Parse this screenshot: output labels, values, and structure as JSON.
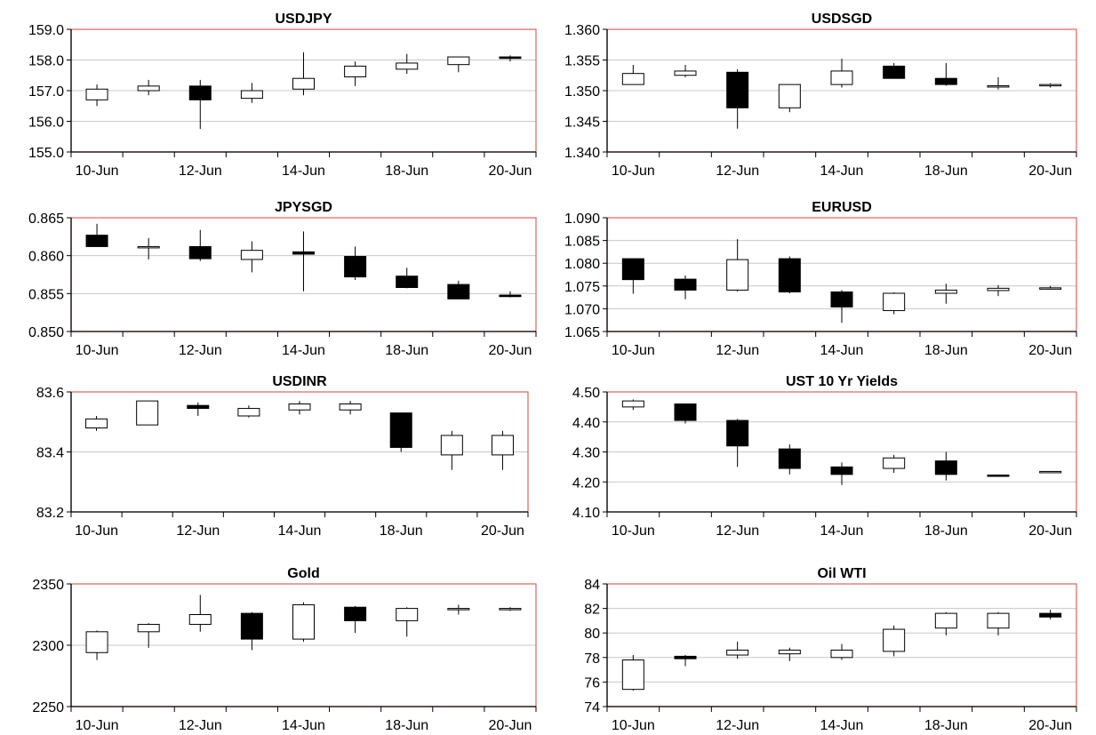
{
  "chart_data": [
    {
      "type": "candlestick",
      "title": "USDJPY",
      "ylim": [
        155.0,
        159.0
      ],
      "yticks": [
        "155.0",
        "156.0",
        "157.0",
        "158.0",
        "159.0"
      ],
      "xticks": [
        "10-Jun",
        "12-Jun",
        "14-Jun",
        "18-Jun",
        "20-Jun"
      ],
      "grid": true,
      "candles": [
        {
          "o": 156.7,
          "h": 157.2,
          "l": 156.5,
          "c": 157.05
        },
        {
          "o": 157.0,
          "h": 157.35,
          "l": 156.85,
          "c": 157.15
        },
        {
          "o": 157.15,
          "h": 157.35,
          "l": 155.75,
          "c": 156.7
        },
        {
          "o": 156.75,
          "h": 157.25,
          "l": 156.6,
          "c": 157.0
        },
        {
          "o": 157.05,
          "h": 158.25,
          "l": 156.85,
          "c": 157.4
        },
        {
          "o": 157.45,
          "h": 157.95,
          "l": 157.15,
          "c": 157.8
        },
        {
          "o": 157.7,
          "h": 158.2,
          "l": 157.55,
          "c": 157.9
        },
        {
          "o": 157.85,
          "h": 158.1,
          "l": 157.6,
          "c": 158.1
        },
        {
          "o": 158.1,
          "h": 158.15,
          "l": 157.95,
          "c": 158.05
        }
      ]
    },
    {
      "type": "candlestick",
      "title": "USDSGD",
      "ylim": [
        1.34,
        1.36
      ],
      "yticks": [
        "1.340",
        "1.345",
        "1.350",
        "1.355",
        "1.360"
      ],
      "xticks": [
        "10-Jun",
        "12-Jun",
        "14-Jun",
        "18-Jun",
        "20-Jun"
      ],
      "grid": true,
      "candles": [
        {
          "o": 1.351,
          "h": 1.3542,
          "l": 1.351,
          "c": 1.3528
        },
        {
          "o": 1.3525,
          "h": 1.3542,
          "l": 1.3522,
          "c": 1.3532
        },
        {
          "o": 1.353,
          "h": 1.3535,
          "l": 1.3438,
          "c": 1.3472
        },
        {
          "o": 1.3472,
          "h": 1.351,
          "l": 1.3465,
          "c": 1.351
        },
        {
          "o": 1.351,
          "h": 1.3552,
          "l": 1.3505,
          "c": 1.3532
        },
        {
          "o": 1.354,
          "h": 1.3545,
          "l": 1.352,
          "c": 1.352
        },
        {
          "o": 1.352,
          "h": 1.3545,
          "l": 1.3508,
          "c": 1.351
        },
        {
          "o": 1.3508,
          "h": 1.3522,
          "l": 1.3502,
          "c": 1.3508
        },
        {
          "o": 1.3508,
          "h": 1.3512,
          "l": 1.3505,
          "c": 1.351
        }
      ]
    },
    {
      "type": "candlestick",
      "title": "JPYSGD",
      "ylim": [
        0.85,
        0.865
      ],
      "yticks": [
        "0.850",
        "0.855",
        "0.860",
        "0.865"
      ],
      "xticks": [
        "10-Jun",
        "12-Jun",
        "14-Jun",
        "18-Jun",
        "20-Jun"
      ],
      "grid": true,
      "candles": [
        {
          "o": 0.8627,
          "h": 0.8642,
          "l": 0.8612,
          "c": 0.8612
        },
        {
          "o": 0.8612,
          "h": 0.8623,
          "l": 0.8595,
          "c": 0.8612
        },
        {
          "o": 0.8612,
          "h": 0.8634,
          "l": 0.8593,
          "c": 0.8596
        },
        {
          "o": 0.8595,
          "h": 0.8619,
          "l": 0.8578,
          "c": 0.8607
        },
        {
          "o": 0.8605,
          "h": 0.8632,
          "l": 0.8553,
          "c": 0.8602
        },
        {
          "o": 0.8599,
          "h": 0.8612,
          "l": 0.8568,
          "c": 0.8572
        },
        {
          "o": 0.8573,
          "h": 0.8584,
          "l": 0.8557,
          "c": 0.8558
        },
        {
          "o": 0.8562,
          "h": 0.8567,
          "l": 0.8543,
          "c": 0.8543
        },
        {
          "o": 0.8548,
          "h": 0.8553,
          "l": 0.8545,
          "c": 0.8546
        }
      ]
    },
    {
      "type": "candlestick",
      "title": "EURUSD",
      "ylim": [
        1.065,
        1.09
      ],
      "yticks": [
        "1.065",
        "1.070",
        "1.075",
        "1.080",
        "1.085",
        "1.090"
      ],
      "xticks": [
        "10-Jun",
        "12-Jun",
        "14-Jun",
        "18-Jun",
        "20-Jun"
      ],
      "grid": true,
      "candles": [
        {
          "o": 1.081,
          "h": 1.081,
          "l": 1.0733,
          "c": 1.0764
        },
        {
          "o": 1.0765,
          "h": 1.0773,
          "l": 1.0721,
          "c": 1.0741
        },
        {
          "o": 1.0741,
          "h": 1.0853,
          "l": 1.0738,
          "c": 1.0808
        },
        {
          "o": 1.081,
          "h": 1.0815,
          "l": 1.0734,
          "c": 1.0737
        },
        {
          "o": 1.0737,
          "h": 1.0741,
          "l": 1.0669,
          "c": 1.0704
        },
        {
          "o": 1.0696,
          "h": 1.0736,
          "l": 1.0688,
          "c": 1.0734
        },
        {
          "o": 1.0734,
          "h": 1.0755,
          "l": 1.0711,
          "c": 1.0741
        },
        {
          "o": 1.074,
          "h": 1.0752,
          "l": 1.0728,
          "c": 1.0745
        },
        {
          "o": 1.0745,
          "h": 1.075,
          "l": 1.0742,
          "c": 1.0746
        }
      ]
    },
    {
      "type": "candlestick",
      "title": "USDINR",
      "ylim": [
        83.2,
        83.6
      ],
      "yticks": [
        "83.2",
        "83.4",
        "83.6"
      ],
      "xticks": [
        "10-Jun",
        "12-Jun",
        "14-Jun",
        "18-Jun",
        "20-Jun"
      ],
      "grid": true,
      "candles": [
        {
          "o": 83.48,
          "h": 83.52,
          "l": 83.47,
          "c": 83.51
        },
        {
          "o": 83.49,
          "h": 83.57,
          "l": 83.49,
          "c": 83.57
        },
        {
          "o": 83.555,
          "h": 83.565,
          "l": 83.52,
          "c": 83.545
        },
        {
          "o": 83.52,
          "h": 83.555,
          "l": 83.515,
          "c": 83.545
        },
        {
          "o": 83.54,
          "h": 83.57,
          "l": 83.525,
          "c": 83.56
        },
        {
          "o": 83.54,
          "h": 83.57,
          "l": 83.525,
          "c": 83.56
        },
        {
          "o": 83.53,
          "h": 83.53,
          "l": 83.4,
          "c": 83.415
        },
        {
          "o": 83.39,
          "h": 83.47,
          "l": 83.34,
          "c": 83.455
        },
        {
          "o": 83.39,
          "h": 83.47,
          "l": 83.34,
          "c": 83.455
        }
      ]
    },
    {
      "type": "candlestick",
      "title": "UST 10 Yr Yields",
      "ylim": [
        4.1,
        4.5
      ],
      "yticks": [
        "4.10",
        "4.20",
        "4.30",
        "4.40",
        "4.50"
      ],
      "xticks": [
        "10-Jun",
        "12-Jun",
        "14-Jun",
        "18-Jun",
        "20-Jun"
      ],
      "grid": true,
      "candles": [
        {
          "o": 4.45,
          "h": 4.475,
          "l": 4.44,
          "c": 4.47
        },
        {
          "o": 4.46,
          "h": 4.46,
          "l": 4.395,
          "c": 4.405
        },
        {
          "o": 4.405,
          "h": 4.41,
          "l": 4.25,
          "c": 4.32
        },
        {
          "o": 4.31,
          "h": 4.325,
          "l": 4.225,
          "c": 4.245
        },
        {
          "o": 4.25,
          "h": 4.265,
          "l": 4.19,
          "c": 4.225
        },
        {
          "o": 4.245,
          "h": 4.29,
          "l": 4.23,
          "c": 4.28
        },
        {
          "o": 4.27,
          "h": 4.3,
          "l": 4.205,
          "c": 4.225
        },
        {
          "o": 4.223,
          "h": 4.225,
          "l": 4.221,
          "c": 4.222
        },
        {
          "o": 4.233,
          "h": 4.236,
          "l": 4.232,
          "c": 4.235
        }
      ]
    },
    {
      "type": "candlestick",
      "title": "Gold",
      "ylim": [
        2250,
        2350
      ],
      "yticks": [
        "2250",
        "2300",
        "2350"
      ],
      "xticks": [
        "10-Jun",
        "12-Jun",
        "14-Jun",
        "18-Jun",
        "20-Jun"
      ],
      "grid": true,
      "candles": [
        {
          "o": 2294,
          "h": 2312,
          "l": 2288,
          "c": 2311
        },
        {
          "o": 2311,
          "h": 2318,
          "l": 2298,
          "c": 2317
        },
        {
          "o": 2317,
          "h": 2341,
          "l": 2311,
          "c": 2325
        },
        {
          "o": 2326,
          "h": 2327,
          "l": 2296,
          "c": 2305
        },
        {
          "o": 2305,
          "h": 2335,
          "l": 2303,
          "c": 2333
        },
        {
          "o": 2331,
          "h": 2332,
          "l": 2310,
          "c": 2320
        },
        {
          "o": 2320,
          "h": 2331,
          "l": 2307,
          "c": 2330
        },
        {
          "o": 2329,
          "h": 2333,
          "l": 2325,
          "c": 2330
        },
        {
          "o": 2329,
          "h": 2331,
          "l": 2328,
          "c": 2330
        }
      ]
    },
    {
      "type": "candlestick",
      "title": "Oil WTI",
      "ylim": [
        74,
        84
      ],
      "yticks": [
        "74",
        "76",
        "78",
        "80",
        "82",
        "84"
      ],
      "xticks": [
        "10-Jun",
        "12-Jun",
        "14-Jun",
        "18-Jun",
        "20-Jun"
      ],
      "grid": true,
      "candles": [
        {
          "o": 75.4,
          "h": 78.2,
          "l": 75.3,
          "c": 77.8
        },
        {
          "o": 78.1,
          "h": 78.2,
          "l": 77.3,
          "c": 77.9
        },
        {
          "o": 78.2,
          "h": 79.3,
          "l": 77.9,
          "c": 78.6
        },
        {
          "o": 78.3,
          "h": 78.8,
          "l": 77.7,
          "c": 78.6
        },
        {
          "o": 78.0,
          "h": 79.1,
          "l": 77.8,
          "c": 78.6
        },
        {
          "o": 78.5,
          "h": 80.6,
          "l": 78.1,
          "c": 80.3
        },
        {
          "o": 80.4,
          "h": 81.7,
          "l": 79.8,
          "c": 81.6
        },
        {
          "o": 80.4,
          "h": 81.7,
          "l": 79.8,
          "c": 81.6
        },
        {
          "o": 81.6,
          "h": 81.9,
          "l": 81.1,
          "c": 81.3
        }
      ]
    }
  ],
  "colors": {
    "frame": "#e06060",
    "grid": "#c8c8c8",
    "axis": "#000000",
    "up_fill": "#ffffff",
    "down_fill": "#000000"
  }
}
